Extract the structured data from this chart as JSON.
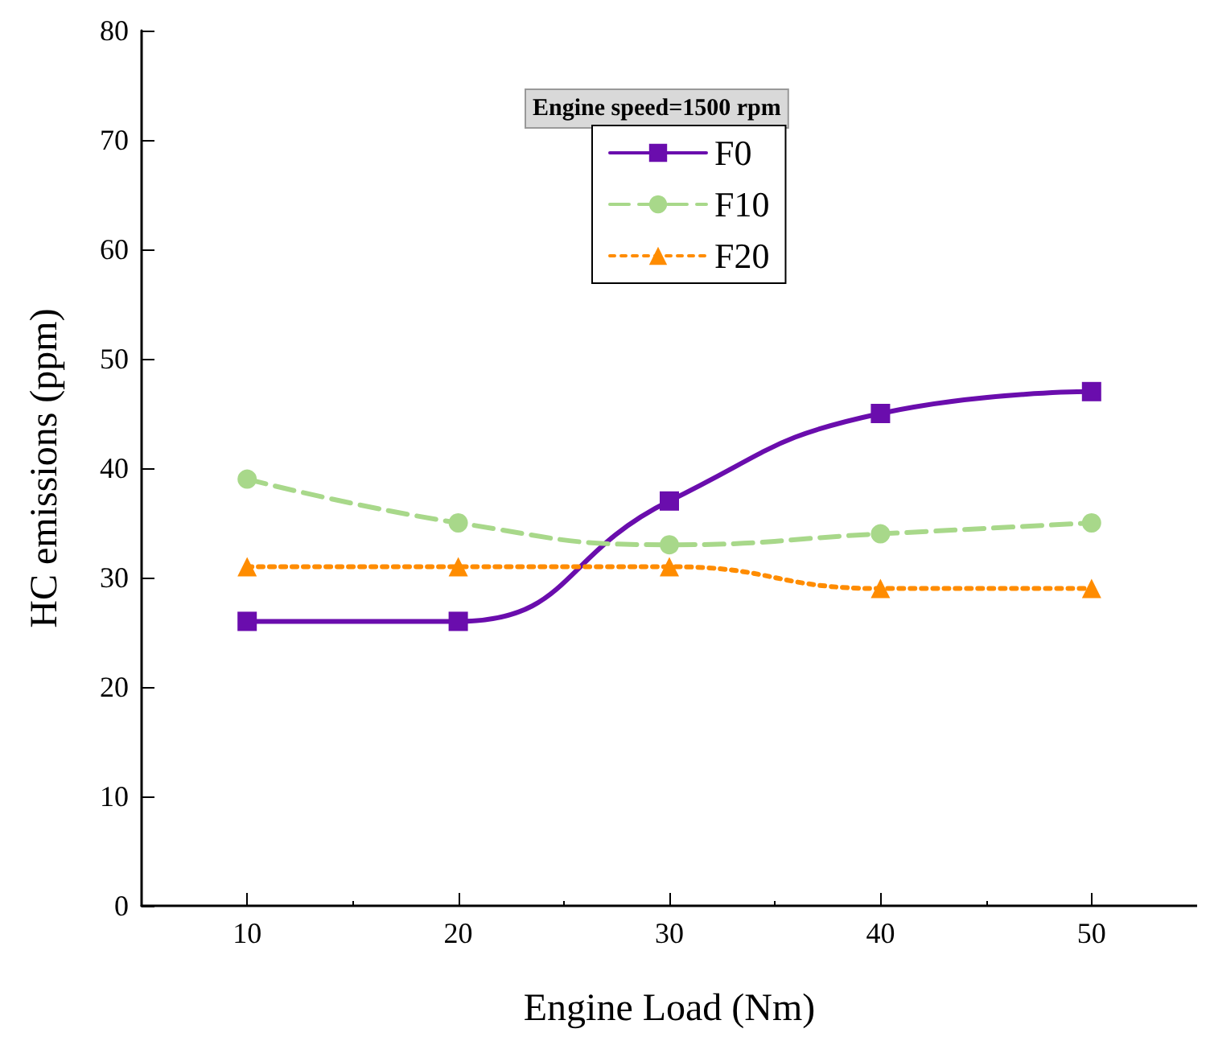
{
  "chart_data": {
    "type": "line",
    "xlabel": "Engine Load (Nm)",
    "ylabel": "HC emissions (ppm)",
    "annotations": [
      "Engine speed=1500 rpm"
    ],
    "x": [
      10,
      20,
      30,
      40,
      50
    ],
    "xlim": [
      5,
      55
    ],
    "xticks": [
      10,
      20,
      30,
      40,
      50
    ],
    "ylim": [
      0,
      80
    ],
    "yticks": [
      0,
      10,
      20,
      30,
      40,
      50,
      60,
      70,
      80
    ],
    "legend": "top",
    "grid": false,
    "series": [
      {
        "name": "F0",
        "color": "#6a0dad",
        "values": [
          26,
          26,
          37,
          45,
          47
        ],
        "marker": "square",
        "line_style": "solid"
      },
      {
        "name": "F10",
        "color": "#a8d88a",
        "values": [
          39,
          35,
          33,
          34,
          35
        ],
        "marker": "circle",
        "line_style": "dashed"
      },
      {
        "name": "F20",
        "color": "#ff8c00",
        "values": [
          31,
          31,
          31,
          29,
          29
        ],
        "marker": "triangle",
        "line_style": "dotted"
      }
    ]
  }
}
